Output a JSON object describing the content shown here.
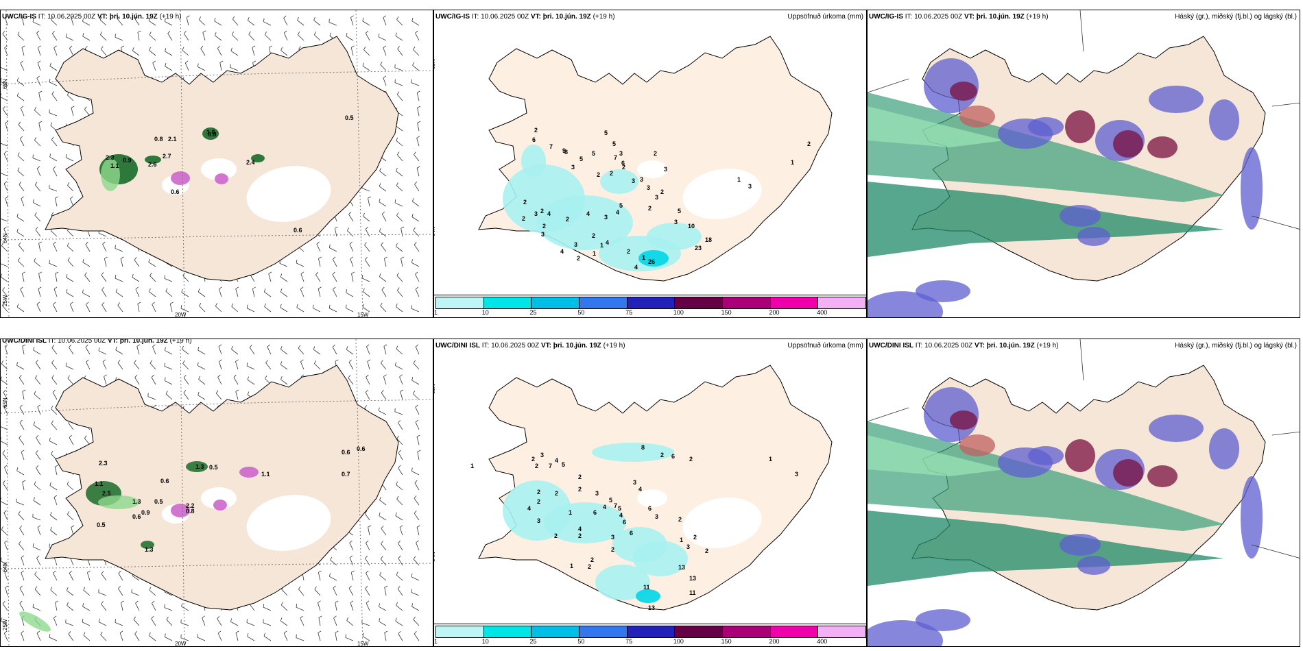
{
  "panels": {
    "p1": {
      "model": "UWC/IG-IS",
      "it_label": "IT:",
      "it": "10.06.2025 00Z",
      "vt_label": "VT:",
      "vt": "þri. 10.jún. 19Z",
      "lead": "(+19 h)",
      "right": ""
    },
    "p2": {
      "model": "UWC/IG-IS",
      "it_label": "IT:",
      "it": "10.06.2025 00Z",
      "vt_label": "VT:",
      "vt": "þri. 10.jún. 19Z",
      "lead": "(+19 h)",
      "right": "Uppsöfnuð úrkoma (mm)"
    },
    "p3": {
      "model": "UWC/IG-IS",
      "it_label": "IT:",
      "it": "10.06.2025 00Z",
      "vt_label": "VT:",
      "vt": "þri. 10.jún. 19Z",
      "lead": "(+19 h)",
      "right": "Háský (gr.), miðský (fj.bl.) og lágský (bl.)"
    },
    "p4": {
      "model": "UWC/DINI ISL",
      "it_label": "IT:",
      "it": "10.06.2025 00Z",
      "vt_label": "VT:",
      "vt": "þri. 10.jún. 19Z",
      "lead": "(+19 h)",
      "right": ""
    },
    "p5": {
      "model": "UWC/DINI ISL",
      "it_label": "IT:",
      "it": "10.06.2025 00Z",
      "vt_label": "VT:",
      "vt": "þri. 10.jún. 19Z",
      "lead": "(+19 h)",
      "right": "Uppsöfnuð úrkoma (mm)"
    },
    "p6": {
      "model": "UWC/DINI ISL",
      "it_label": "IT:",
      "it": "10.06.2025 00Z",
      "vt_label": "VT:",
      "vt": "þri. 10.jún. 19Z",
      "lead": "(+19 h)",
      "right": "Háský (gr.), miðský (fj.bl.) og lágský (bl.)"
    }
  },
  "axes": {
    "lon_20": "20W",
    "lon_15": "15W",
    "lon_25": "25W",
    "lat_65": "65N",
    "lat_64": "64N"
  },
  "colorbar": {
    "labels": [
      "1",
      "10",
      "25",
      "50",
      "75",
      "100",
      "150",
      "200",
      "400"
    ],
    "colors": [
      "#bff5f5",
      "#00e5e5",
      "#00bfe6",
      "#3377ee",
      "#2222bb",
      "#660044",
      "#aa0077",
      "#ee00aa",
      "#f4b0f4"
    ]
  },
  "p1_values": [
    "0.8",
    "2.1",
    "2.3",
    "1.1",
    "0.9",
    "2.6",
    "2.7",
    "2.4",
    "0.6",
    "0.6",
    "0.5",
    "0.8",
    "1.6"
  ],
  "p2_values": [
    "2",
    "6",
    "7",
    "9",
    "3",
    "5",
    "5",
    "5",
    "7",
    "3",
    "2",
    "2",
    "2",
    "3",
    "3",
    "2",
    "2",
    "5",
    "4",
    "3",
    "4",
    "2",
    "4",
    "2",
    "2",
    "2",
    "3",
    "2",
    "3",
    "3",
    "4",
    "2",
    "2",
    "4",
    "8",
    "5",
    "2",
    "6",
    "3",
    "3",
    "3",
    "3",
    "5",
    "10",
    "18",
    "23",
    "26",
    "4",
    "1",
    "1",
    "1",
    "2",
    "1",
    "3",
    "1",
    "2"
  ],
  "p4_values": [
    "2.3",
    "1.1",
    "2.5",
    "1.3",
    "0.5",
    "0.9",
    "0.6",
    "0.5",
    "0.6",
    "1.3",
    "0.5",
    "0.8",
    "2.2",
    "1.1",
    "0.6",
    "0.6",
    "0.7",
    "1.3"
  ],
  "p5_values": [
    "1",
    "2",
    "3",
    "2",
    "7",
    "4",
    "5",
    "2",
    "2",
    "2",
    "8",
    "2",
    "6",
    "2",
    "2",
    "3",
    "4",
    "5",
    "3",
    "4",
    "5",
    "4",
    "6",
    "6",
    "3",
    "2",
    "2",
    "2",
    "1",
    "2",
    "3",
    "4",
    "2",
    "1",
    "4",
    "2",
    "6",
    "7",
    "6",
    "3",
    "11",
    "13",
    "13",
    "11",
    "13",
    "1",
    "3",
    "2",
    "2",
    "2",
    "1",
    "3"
  ],
  "colors": {
    "land": "#f5e6d8",
    "land_p2": "#fdf0e3",
    "sea": "#ffffff",
    "coast": "#000000"
  }
}
